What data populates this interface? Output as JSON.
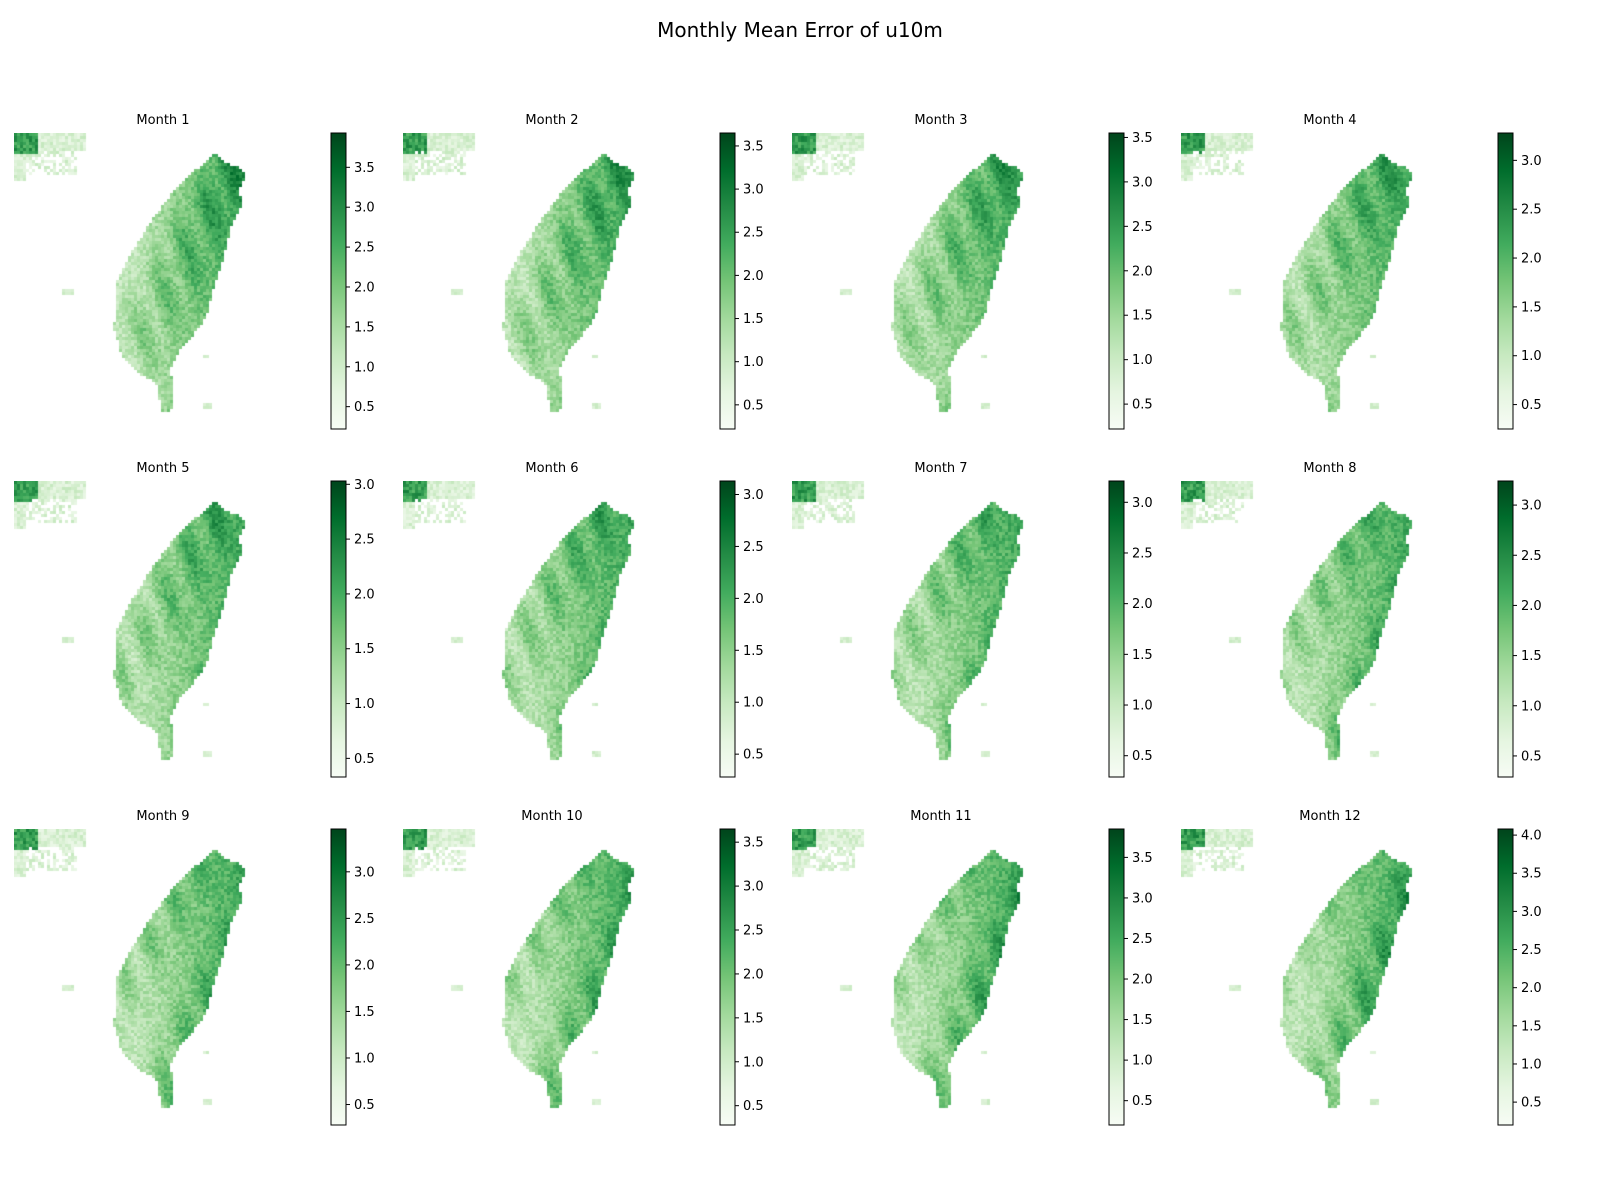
{
  "figure": {
    "title": "Monthly Mean Error of u10m"
  },
  "colormap": {
    "name": "Greens",
    "stops": [
      "#f7fcf5",
      "#e5f5e0",
      "#c7e9c0",
      "#a1d99b",
      "#74c476",
      "#41ab5d",
      "#238b45",
      "#006d2c",
      "#00441b"
    ]
  },
  "chart_data": [
    {
      "type": "heatmap",
      "title": "Month 1",
      "cbar_range": [
        0.22,
        3.93
      ],
      "ticks": [
        "0.5",
        "1.0",
        "1.5",
        "2.0",
        "2.5",
        "3.0",
        "3.5"
      ],
      "tick_values": [
        0.5,
        1.0,
        1.5,
        2.0,
        2.5,
        3.0,
        3.5
      ]
    },
    {
      "type": "heatmap",
      "title": "Month 2",
      "cbar_range": [
        0.22,
        3.65
      ],
      "ticks": [
        "0.5",
        "1.0",
        "1.5",
        "2.0",
        "2.5",
        "3.0",
        "3.5"
      ],
      "tick_values": [
        0.5,
        1.0,
        1.5,
        2.0,
        2.5,
        3.0,
        3.5
      ]
    },
    {
      "type": "heatmap",
      "title": "Month 3",
      "cbar_range": [
        0.22,
        3.55
      ],
      "ticks": [
        "0.5",
        "1.0",
        "1.5",
        "2.0",
        "2.5",
        "3.0",
        "3.5"
      ],
      "tick_values": [
        0.5,
        1.0,
        1.5,
        2.0,
        2.5,
        3.0,
        3.5
      ]
    },
    {
      "type": "heatmap",
      "title": "Month 4",
      "cbar_range": [
        0.25,
        3.28
      ],
      "ticks": [
        "0.5",
        "1.0",
        "1.5",
        "2.0",
        "2.5",
        "3.0"
      ],
      "tick_values": [
        0.5,
        1.0,
        1.5,
        2.0,
        2.5,
        3.0
      ]
    },
    {
      "type": "heatmap",
      "title": "Month 5",
      "cbar_range": [
        0.33,
        3.03
      ],
      "ticks": [
        "0.5",
        "1.0",
        "1.5",
        "2.0",
        "2.5",
        "3.0"
      ],
      "tick_values": [
        0.5,
        1.0,
        1.5,
        2.0,
        2.5,
        3.0
      ]
    },
    {
      "type": "heatmap",
      "title": "Month 6",
      "cbar_range": [
        0.28,
        3.13
      ],
      "ticks": [
        "0.5",
        "1.0",
        "1.5",
        "2.0",
        "2.5",
        "3.0"
      ],
      "tick_values": [
        0.5,
        1.0,
        1.5,
        2.0,
        2.5,
        3.0
      ]
    },
    {
      "type": "heatmap",
      "title": "Month 7",
      "cbar_range": [
        0.29,
        3.21
      ],
      "ticks": [
        "0.5",
        "1.0",
        "1.5",
        "2.0",
        "2.5",
        "3.0"
      ],
      "tick_values": [
        0.5,
        1.0,
        1.5,
        2.0,
        2.5,
        3.0
      ]
    },
    {
      "type": "heatmap",
      "title": "Month 8",
      "cbar_range": [
        0.29,
        3.24
      ],
      "ticks": [
        "0.5",
        "1.0",
        "1.5",
        "2.0",
        "2.5",
        "3.0"
      ],
      "tick_values": [
        0.5,
        1.0,
        1.5,
        2.0,
        2.5,
        3.0
      ]
    },
    {
      "type": "heatmap",
      "title": "Month 9",
      "cbar_range": [
        0.28,
        3.46
      ],
      "ticks": [
        "0.5",
        "1.0",
        "1.5",
        "2.0",
        "2.5",
        "3.0"
      ],
      "tick_values": [
        0.5,
        1.0,
        1.5,
        2.0,
        2.5,
        3.0
      ]
    },
    {
      "type": "heatmap",
      "title": "Month 10",
      "cbar_range": [
        0.28,
        3.65
      ],
      "ticks": [
        "0.5",
        "1.0",
        "1.5",
        "2.0",
        "2.5",
        "3.0",
        "3.5"
      ],
      "tick_values": [
        0.5,
        1.0,
        1.5,
        2.0,
        2.5,
        3.0,
        3.5
      ]
    },
    {
      "type": "heatmap",
      "title": "Month 11",
      "cbar_range": [
        0.2,
        3.85
      ],
      "ticks": [
        "0.5",
        "1.0",
        "1.5",
        "2.0",
        "2.5",
        "3.0",
        "3.5"
      ],
      "tick_values": [
        0.5,
        1.0,
        1.5,
        2.0,
        2.5,
        3.0,
        3.5
      ]
    },
    {
      "type": "heatmap",
      "title": "Month 12",
      "cbar_range": [
        0.2,
        4.08
      ],
      "ticks": [
        "0.5",
        "1.0",
        "1.5",
        "2.0",
        "2.5",
        "3.0",
        "3.5",
        "4.0"
      ],
      "tick_values": [
        0.5,
        1.0,
        1.5,
        2.0,
        2.5,
        3.0,
        3.5,
        4.0
      ]
    }
  ]
}
